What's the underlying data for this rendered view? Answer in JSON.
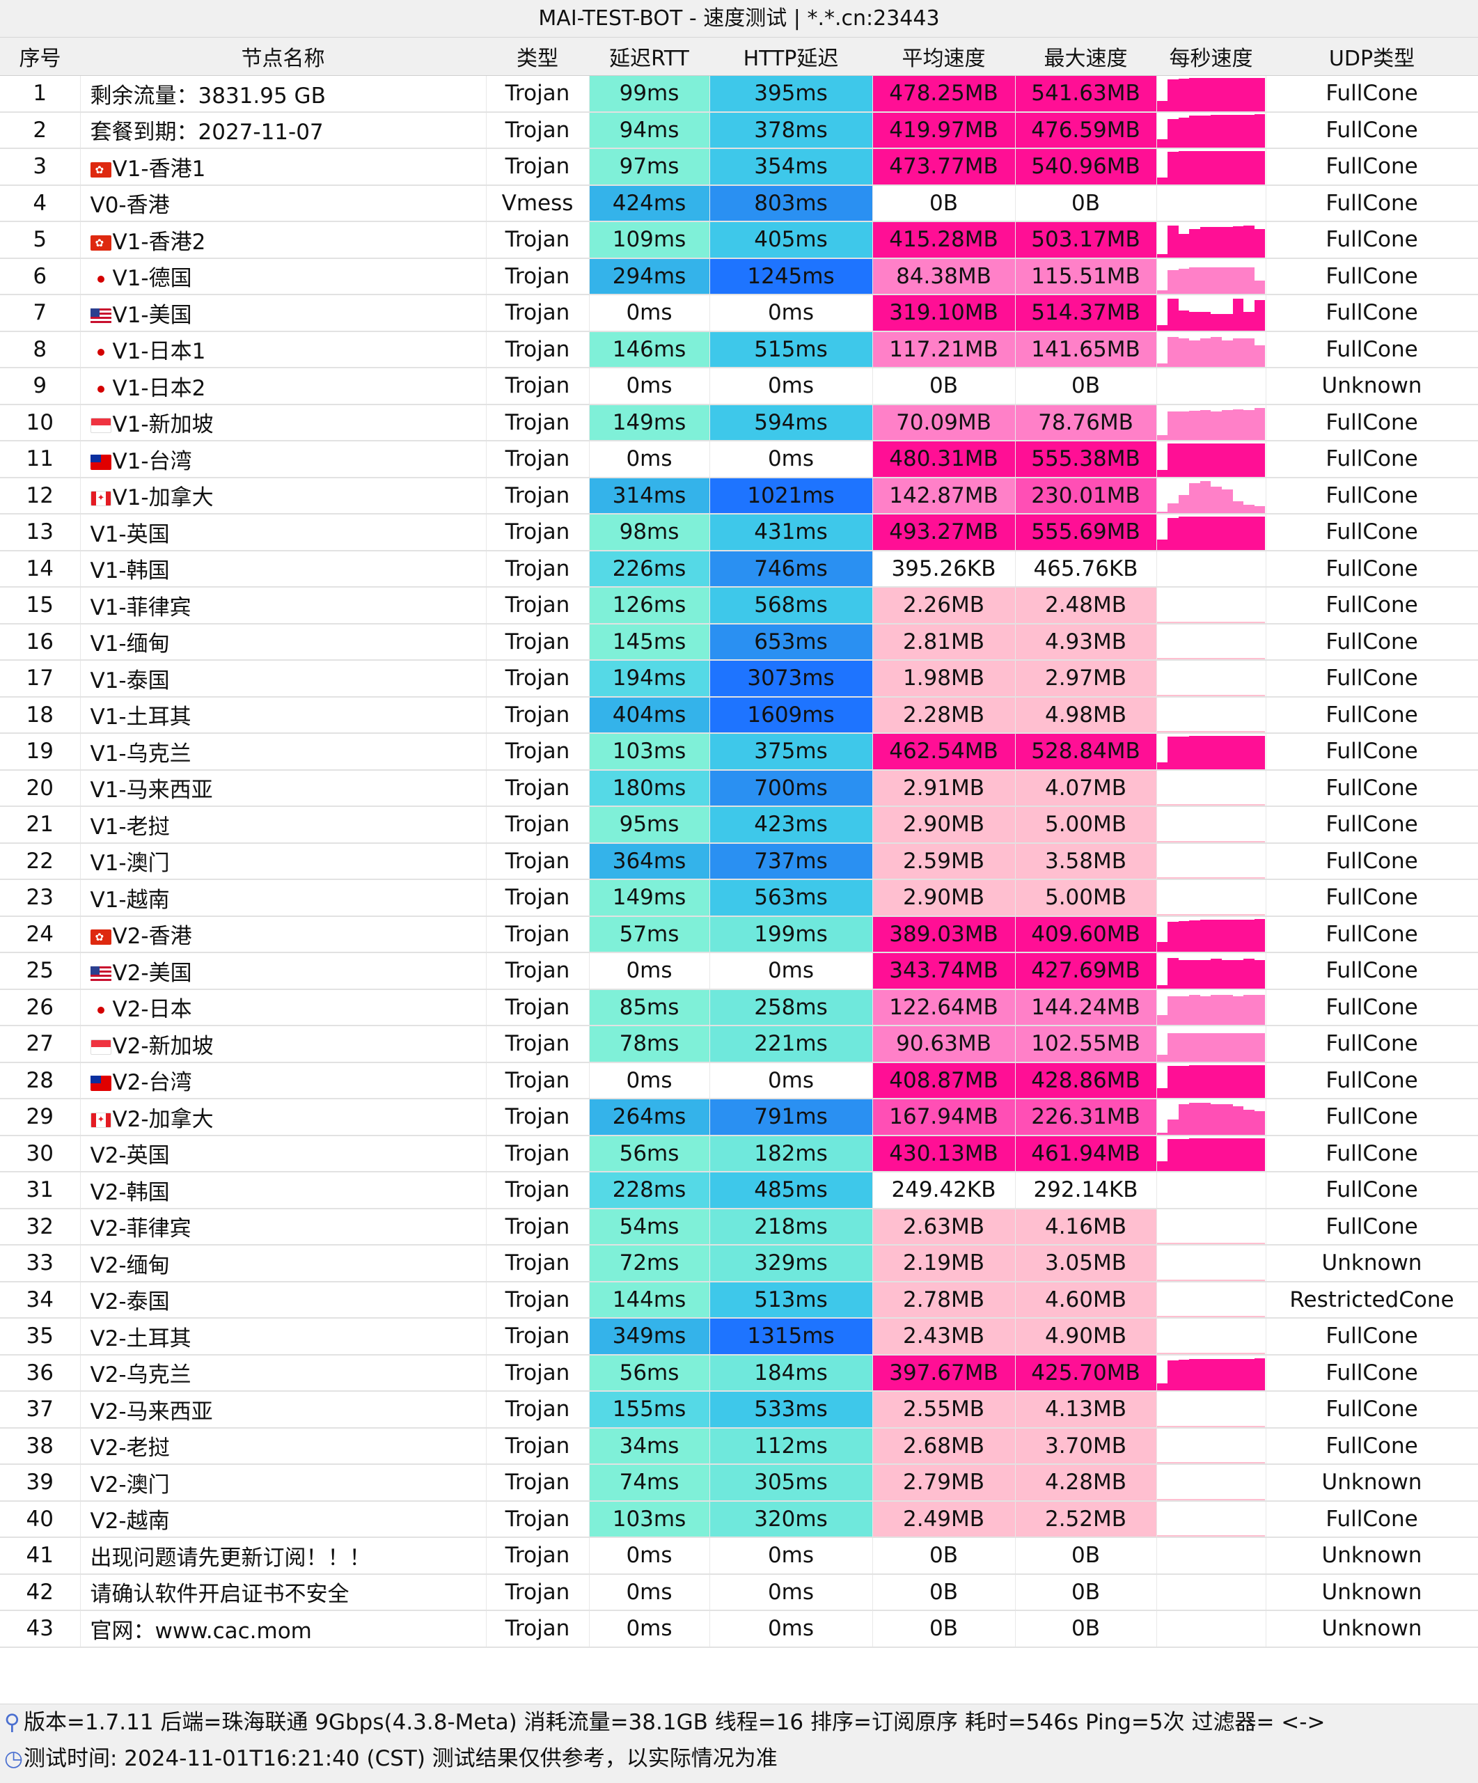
{
  "title": "MAI-TEST-BOT - 速度测试 | *.*.cn:23443",
  "headers": {
    "index": "序号",
    "name": "节点名称",
    "type": "类型",
    "rtt": "延迟RTT",
    "http": "HTTP延迟",
    "avg": "平均速度",
    "max": "最大速度",
    "persec": "每秒速度",
    "udp": "UDP类型"
  },
  "colors": {
    "rtt_fast": "#7ff0d8",
    "rtt_mid": "#55d9e6",
    "rtt_slow": "#34b3ea",
    "http_fast": "#6fe8dc",
    "http_mid": "#3ec8ea",
    "http_slow": "#2a90f2",
    "http_vslow": "#1e74ff",
    "speed_high": "#ff0f95",
    "speed_mid": "#ff4fb5",
    "speed_low": "#ff80c8",
    "speed_vlow": "#ffbfd0"
  },
  "rows": [
    {
      "i": "1",
      "name": "剩余流量：3831.95 GB",
      "flag": "",
      "type": "Trojan",
      "rtt": "99ms",
      "http": "395ms",
      "avg": "478.25MB",
      "max": "541.63MB",
      "udp": "FullCone",
      "spark": [
        0.3,
        0.95,
        0.97,
        0.98,
        0.98,
        0.99,
        0.98,
        0.98,
        0.99,
        1.0
      ]
    },
    {
      "i": "2",
      "name": "套餐到期：2027-11-07",
      "flag": "",
      "type": "Trojan",
      "rtt": "94ms",
      "http": "378ms",
      "avg": "419.97MB",
      "max": "476.59MB",
      "udp": "FullCone",
      "spark": [
        0.25,
        0.85,
        0.9,
        0.95,
        0.96,
        0.97,
        0.97,
        0.98,
        0.98,
        1.0
      ]
    },
    {
      "i": "3",
      "name": "V1-香港1",
      "flag": "hk",
      "type": "Trojan",
      "rtt": "97ms",
      "http": "354ms",
      "avg": "473.77MB",
      "max": "540.96MB",
      "udp": "FullCone",
      "spark": [
        0.2,
        0.97,
        0.98,
        0.98,
        0.99,
        0.99,
        0.99,
        0.98,
        0.99,
        1.0
      ]
    },
    {
      "i": "4",
      "name": "V0-香港",
      "flag": "",
      "type": "Vmess",
      "rtt": "424ms",
      "http": "803ms",
      "avg": "0B",
      "max": "0B",
      "udp": "FullCone",
      "spark": []
    },
    {
      "i": "5",
      "name": "V1-香港2",
      "flag": "hk",
      "type": "Trojan",
      "rtt": "109ms",
      "http": "405ms",
      "avg": "415.28MB",
      "max": "503.17MB",
      "udp": "FullCone",
      "spark": [
        0.1,
        0.95,
        0.7,
        0.85,
        0.9,
        0.9,
        0.9,
        0.92,
        0.95,
        0.85
      ]
    },
    {
      "i": "6",
      "name": "V1-德国",
      "flag": "jp",
      "type": "Trojan",
      "rtt": "294ms",
      "http": "1245ms",
      "avg": "84.38MB",
      "max": "115.51MB",
      "udp": "FullCone",
      "spark": [
        0.1,
        0.7,
        0.75,
        0.8,
        0.8,
        0.8,
        0.8,
        0.8,
        0.8,
        0.4
      ]
    },
    {
      "i": "7",
      "name": "V1-美国",
      "flag": "us",
      "type": "Trojan",
      "rtt": "0ms",
      "http": "0ms",
      "avg": "319.10MB",
      "max": "514.37MB",
      "udp": "FullCone",
      "spark": [
        0.15,
        0.95,
        0.6,
        0.55,
        0.55,
        0.5,
        0.5,
        0.95,
        0.55,
        0.9
      ]
    },
    {
      "i": "8",
      "name": "V1-日本1",
      "flag": "jp",
      "type": "Trojan",
      "rtt": "146ms",
      "http": "515ms",
      "avg": "117.21MB",
      "max": "141.65MB",
      "udp": "FullCone",
      "spark": [
        0.1,
        0.9,
        0.85,
        0.8,
        0.85,
        0.9,
        0.8,
        0.85,
        0.85,
        0.65
      ]
    },
    {
      "i": "9",
      "name": "V1-日本2",
      "flag": "jp",
      "type": "Trojan",
      "rtt": "0ms",
      "http": "0ms",
      "avg": "0B",
      "max": "0B",
      "udp": "Unknown",
      "spark": []
    },
    {
      "i": "10",
      "name": "V1-新加坡",
      "flag": "sg",
      "type": "Trojan",
      "rtt": "149ms",
      "http": "594ms",
      "avg": "70.09MB",
      "max": "78.76MB",
      "udp": "FullCone",
      "spark": [
        0.15,
        0.85,
        0.85,
        0.88,
        0.9,
        0.85,
        0.9,
        0.92,
        0.9,
        0.95
      ]
    },
    {
      "i": "11",
      "name": "V1-台湾",
      "flag": "tw",
      "type": "Trojan",
      "rtt": "0ms",
      "http": "0ms",
      "avg": "480.31MB",
      "max": "555.38MB",
      "udp": "FullCone",
      "spark": [
        0.2,
        0.98,
        0.98,
        0.99,
        0.99,
        0.99,
        0.99,
        0.99,
        0.99,
        1.0
      ]
    },
    {
      "i": "12",
      "name": "V1-加拿大",
      "flag": "ca",
      "type": "Trojan",
      "rtt": "314ms",
      "http": "1021ms",
      "avg": "142.87MB",
      "max": "230.01MB",
      "udp": "FullCone",
      "spark": [
        0.05,
        0.3,
        0.55,
        0.9,
        0.95,
        0.8,
        0.7,
        0.35,
        0.25,
        0.2
      ]
    },
    {
      "i": "13",
      "name": "V1-英国",
      "flag": "",
      "type": "Trojan",
      "rtt": "98ms",
      "http": "431ms",
      "avg": "493.27MB",
      "max": "555.69MB",
      "udp": "FullCone",
      "spark": [
        0.3,
        0.95,
        0.98,
        0.99,
        0.99,
        0.99,
        0.99,
        0.99,
        0.99,
        1.0
      ]
    },
    {
      "i": "14",
      "name": "V1-韩国",
      "flag": "",
      "type": "Trojan",
      "rtt": "226ms",
      "http": "746ms",
      "avg": "395.26KB",
      "max": "465.76KB",
      "udp": "FullCone",
      "spark": []
    },
    {
      "i": "15",
      "name": "V1-菲律宾",
      "flag": "",
      "type": "Trojan",
      "rtt": "126ms",
      "http": "568ms",
      "avg": "2.26MB",
      "max": "2.48MB",
      "udp": "FullCone",
      "spark": [
        0.03,
        0.03,
        0.03,
        0.03,
        0.03,
        0.03,
        0.03,
        0.03,
        0.03,
        0.03
      ]
    },
    {
      "i": "16",
      "name": "V1-缅甸",
      "flag": "",
      "type": "Trojan",
      "rtt": "145ms",
      "http": "653ms",
      "avg": "2.81MB",
      "max": "4.93MB",
      "udp": "FullCone",
      "spark": [
        0.04,
        0.05,
        0.04,
        0.04,
        0.04,
        0.04,
        0.04,
        0.04,
        0.04,
        0.04
      ]
    },
    {
      "i": "17",
      "name": "V1-泰国",
      "flag": "",
      "type": "Trojan",
      "rtt": "194ms",
      "http": "3073ms",
      "avg": "1.98MB",
      "max": "2.97MB",
      "udp": "FullCone",
      "spark": [
        0.03,
        0.03,
        0.03,
        0.03,
        0.03,
        0.03,
        0.03,
        0.03,
        0.03,
        0.03
      ]
    },
    {
      "i": "18",
      "name": "V1-土耳其",
      "flag": "",
      "type": "Trojan",
      "rtt": "404ms",
      "http": "1609ms",
      "avg": "2.28MB",
      "max": "4.98MB",
      "udp": "FullCone",
      "spark": [
        0.03,
        0.03,
        0.03,
        0.03,
        0.03,
        0.03,
        0.03,
        0.03,
        0.03,
        0.03
      ]
    },
    {
      "i": "19",
      "name": "V1-乌克兰",
      "flag": "",
      "type": "Trojan",
      "rtt": "103ms",
      "http": "375ms",
      "avg": "462.54MB",
      "max": "528.84MB",
      "udp": "FullCone",
      "spark": [
        0.2,
        0.96,
        0.97,
        0.98,
        0.98,
        0.98,
        0.98,
        0.98,
        0.98,
        0.98
      ]
    },
    {
      "i": "20",
      "name": "V1-马来西亚",
      "flag": "",
      "type": "Trojan",
      "rtt": "180ms",
      "http": "700ms",
      "avg": "2.91MB",
      "max": "4.07MB",
      "udp": "FullCone",
      "spark": [
        0.03,
        0.03,
        0.03,
        0.03,
        0.03,
        0.03,
        0.03,
        0.03,
        0.03,
        0.03
      ]
    },
    {
      "i": "21",
      "name": "V1-老挝",
      "flag": "",
      "type": "Trojan",
      "rtt": "95ms",
      "http": "423ms",
      "avg": "2.90MB",
      "max": "5.00MB",
      "udp": "FullCone",
      "spark": [
        0.03,
        0.03,
        0.03,
        0.03,
        0.03,
        0.03,
        0.03,
        0.03,
        0.03,
        0.03
      ]
    },
    {
      "i": "22",
      "name": "V1-澳门",
      "flag": "",
      "type": "Trojan",
      "rtt": "364ms",
      "http": "737ms",
      "avg": "2.59MB",
      "max": "3.58MB",
      "udp": "FullCone",
      "spark": [
        0.03,
        0.03,
        0.03,
        0.03,
        0.03,
        0.03,
        0.03,
        0.03,
        0.03,
        0.03
      ]
    },
    {
      "i": "23",
      "name": "V1-越南",
      "flag": "",
      "type": "Trojan",
      "rtt": "149ms",
      "http": "563ms",
      "avg": "2.90MB",
      "max": "5.00MB",
      "udp": "FullCone",
      "spark": [
        0.03,
        0.03,
        0.03,
        0.03,
        0.03,
        0.03,
        0.03,
        0.03,
        0.03,
        0.03
      ]
    },
    {
      "i": "24",
      "name": "V2-香港",
      "flag": "hk",
      "type": "Trojan",
      "rtt": "57ms",
      "http": "199ms",
      "avg": "389.03MB",
      "max": "409.60MB",
      "udp": "FullCone",
      "spark": [
        0.3,
        0.9,
        0.92,
        0.93,
        0.95,
        0.95,
        0.95,
        0.95,
        0.95,
        0.97
      ]
    },
    {
      "i": "25",
      "name": "V2-美国",
      "flag": "us",
      "type": "Trojan",
      "rtt": "0ms",
      "http": "0ms",
      "avg": "343.74MB",
      "max": "427.69MB",
      "udp": "FullCone",
      "spark": [
        0.1,
        0.9,
        0.85,
        0.85,
        0.85,
        0.88,
        0.85,
        0.85,
        0.88,
        0.85
      ]
    },
    {
      "i": "26",
      "name": "V2-日本",
      "flag": "jp",
      "type": "Trojan",
      "rtt": "85ms",
      "http": "258ms",
      "avg": "122.64MB",
      "max": "144.24MB",
      "udp": "FullCone",
      "spark": [
        0.3,
        0.85,
        0.85,
        0.9,
        0.85,
        0.9,
        0.9,
        0.85,
        0.9,
        0.9
      ]
    },
    {
      "i": "27",
      "name": "V2-新加坡",
      "flag": "sg",
      "type": "Trojan",
      "rtt": "78ms",
      "http": "221ms",
      "avg": "90.63MB",
      "max": "102.55MB",
      "udp": "FullCone",
      "spark": [
        0.2,
        0.85,
        0.85,
        0.85,
        0.85,
        0.85,
        0.85,
        0.85,
        0.85,
        0.85
      ]
    },
    {
      "i": "28",
      "name": "V2-台湾",
      "flag": "tw",
      "type": "Trojan",
      "rtt": "0ms",
      "http": "0ms",
      "avg": "408.87MB",
      "max": "428.86MB",
      "udp": "FullCone",
      "spark": [
        0.3,
        0.95,
        0.96,
        0.97,
        0.97,
        0.97,
        0.97,
        0.97,
        0.97,
        0.97
      ]
    },
    {
      "i": "29",
      "name": "V2-加拿大",
      "flag": "ca",
      "type": "Trojan",
      "rtt": "264ms",
      "http": "791ms",
      "avg": "167.94MB",
      "max": "226.31MB",
      "udp": "FullCone",
      "spark": [
        0.05,
        0.45,
        0.9,
        0.95,
        0.95,
        0.9,
        0.9,
        0.85,
        0.75,
        0.7
      ]
    },
    {
      "i": "30",
      "name": "V2-英国",
      "flag": "",
      "type": "Trojan",
      "rtt": "56ms",
      "http": "182ms",
      "avg": "430.13MB",
      "max": "461.94MB",
      "udp": "FullCone",
      "spark": [
        0.3,
        0.95,
        0.96,
        0.97,
        0.97,
        0.97,
        0.97,
        0.97,
        0.97,
        0.97
      ]
    },
    {
      "i": "31",
      "name": "V2-韩国",
      "flag": "",
      "type": "Trojan",
      "rtt": "228ms",
      "http": "485ms",
      "avg": "249.42KB",
      "max": "292.14KB",
      "udp": "FullCone",
      "spark": []
    },
    {
      "i": "32",
      "name": "V2-菲律宾",
      "flag": "",
      "type": "Trojan",
      "rtt": "54ms",
      "http": "218ms",
      "avg": "2.63MB",
      "max": "4.16MB",
      "udp": "FullCone",
      "spark": [
        0.03,
        0.03,
        0.03,
        0.03,
        0.03,
        0.03,
        0.03,
        0.03,
        0.03,
        0.03
      ]
    },
    {
      "i": "33",
      "name": "V2-缅甸",
      "flag": "",
      "type": "Trojan",
      "rtt": "72ms",
      "http": "329ms",
      "avg": "2.19MB",
      "max": "3.05MB",
      "udp": "Unknown",
      "spark": [
        0.03,
        0.03,
        0.03,
        0.03,
        0.03,
        0.03,
        0.03,
        0.03,
        0.03,
        0.03
      ]
    },
    {
      "i": "34",
      "name": "V2-泰国",
      "flag": "",
      "type": "Trojan",
      "rtt": "144ms",
      "http": "513ms",
      "avg": "2.78MB",
      "max": "4.60MB",
      "udp": "RestrictedCone",
      "spark": [
        0.03,
        0.03,
        0.03,
        0.03,
        0.03,
        0.03,
        0.03,
        0.03,
        0.03,
        0.03
      ]
    },
    {
      "i": "35",
      "name": "V2-土耳其",
      "flag": "",
      "type": "Trojan",
      "rtt": "349ms",
      "http": "1315ms",
      "avg": "2.43MB",
      "max": "4.90MB",
      "udp": "FullCone",
      "spark": [
        0.03,
        0.03,
        0.03,
        0.03,
        0.03,
        0.03,
        0.03,
        0.03,
        0.03,
        0.03
      ]
    },
    {
      "i": "36",
      "name": "V2-乌克兰",
      "flag": "",
      "type": "Trojan",
      "rtt": "56ms",
      "http": "184ms",
      "avg": "397.67MB",
      "max": "425.70MB",
      "udp": "FullCone",
      "spark": [
        0.2,
        0.9,
        0.92,
        0.93,
        0.93,
        0.93,
        0.93,
        0.93,
        0.93,
        0.95
      ]
    },
    {
      "i": "37",
      "name": "V2-马来西亚",
      "flag": "",
      "type": "Trojan",
      "rtt": "155ms",
      "http": "533ms",
      "avg": "2.55MB",
      "max": "4.13MB",
      "udp": "FullCone",
      "spark": [
        0.03,
        0.03,
        0.03,
        0.03,
        0.03,
        0.03,
        0.03,
        0.03,
        0.03,
        0.03
      ]
    },
    {
      "i": "38",
      "name": "V2-老挝",
      "flag": "",
      "type": "Trojan",
      "rtt": "34ms",
      "http": "112ms",
      "avg": "2.68MB",
      "max": "3.70MB",
      "udp": "FullCone",
      "spark": [
        0.03,
        0.03,
        0.03,
        0.03,
        0.03,
        0.03,
        0.03,
        0.03,
        0.03,
        0.03
      ]
    },
    {
      "i": "39",
      "name": "V2-澳门",
      "flag": "",
      "type": "Trojan",
      "rtt": "74ms",
      "http": "305ms",
      "avg": "2.79MB",
      "max": "4.28MB",
      "udp": "Unknown",
      "spark": [
        0.03,
        0.03,
        0.03,
        0.03,
        0.03,
        0.03,
        0.03,
        0.03,
        0.03,
        0.03
      ]
    },
    {
      "i": "40",
      "name": "V2-越南",
      "flag": "",
      "type": "Trojan",
      "rtt": "103ms",
      "http": "320ms",
      "avg": "2.49MB",
      "max": "2.52MB",
      "udp": "FullCone",
      "spark": [
        0.03,
        0.03,
        0.03,
        0.03,
        0.03,
        0.03,
        0.03,
        0.03,
        0.03,
        0.03
      ]
    },
    {
      "i": "41",
      "name": "出现问题请先更新订阅！！！",
      "flag": "",
      "type": "Trojan",
      "rtt": "0ms",
      "http": "0ms",
      "avg": "0B",
      "max": "0B",
      "udp": "Unknown",
      "spark": []
    },
    {
      "i": "42",
      "name": "请确认软件开启证书不安全",
      "flag": "",
      "type": "Trojan",
      "rtt": "0ms",
      "http": "0ms",
      "avg": "0B",
      "max": "0B",
      "udp": "Unknown",
      "spark": []
    },
    {
      "i": "43",
      "name": "官网：www.cac.mom",
      "flag": "",
      "type": "Trojan",
      "rtt": "0ms",
      "http": "0ms",
      "avg": "0B",
      "max": "0B",
      "udp": "Unknown",
      "spark": []
    }
  ],
  "footer": {
    "icon_1": "link-icon",
    "line1": "版本=1.7.11  后端=珠海联通 9Gbps(4.3.8-Meta) 消耗流量=38.1GB  线程=16  排序=订阅原序  耗时=546s  Ping=5次  过滤器= <->",
    "icon_2": "clock-icon",
    "line2": "测试时间: 2024-11-01T16:21:40 (CST)  测试结果仅供参考，以实际情况为准"
  }
}
